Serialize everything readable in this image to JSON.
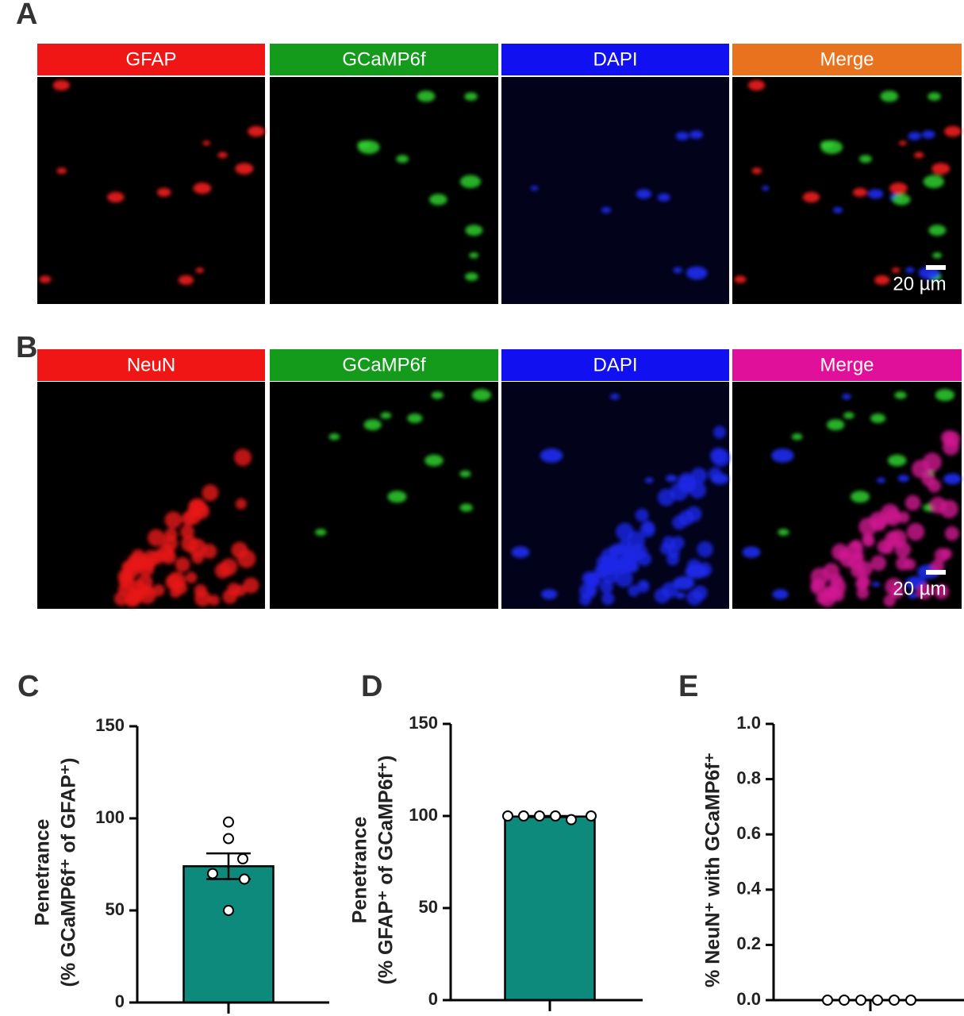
{
  "panel_labels": [
    "A",
    "B",
    "C",
    "D",
    "E"
  ],
  "image_rows": [
    {
      "headers": [
        "GFAP",
        "GCaMP6f",
        "DAPI",
        "Merge"
      ],
      "header_colors": [
        "#f01616",
        "#159b1c",
        "#1010f0",
        "#e8721e"
      ],
      "scale_bar": "20 µm"
    },
    {
      "headers": [
        "NeuN",
        "GCaMP6f",
        "DAPI",
        "Merge"
      ],
      "header_colors": [
        "#f01616",
        "#159b1c",
        "#1010f0",
        "#e0109a"
      ],
      "scale_bar": "20 µm"
    }
  ],
  "chart_data": [
    {
      "type": "bar",
      "ylabel": [
        "Penetrance",
        "(% GCaMP6f⁺ of GFAP⁺)"
      ],
      "values": [
        74
      ],
      "errors": [
        7
      ],
      "points": [
        98,
        89,
        78,
        70,
        67,
        50
      ],
      "color": "#0e8a7c",
      "ylim": [
        0,
        150
      ],
      "yticks": [
        0,
        50,
        100,
        150
      ]
    },
    {
      "type": "bar",
      "ylabel": [
        "Penetrance",
        "(% GFAP⁺ of GCaMP6f⁺)"
      ],
      "values": [
        99.7
      ],
      "errors": [
        0.3
      ],
      "points": [
        100,
        100,
        100,
        100,
        98,
        100
      ],
      "color": "#0e8a7c",
      "ylim": [
        0,
        150
      ],
      "yticks": [
        0,
        50,
        100,
        150
      ]
    },
    {
      "type": "bar",
      "ylabel": [
        "% NeuN⁺ with GCaMP6f⁺"
      ],
      "values": [
        0
      ],
      "errors": [
        0
      ],
      "points": [
        0,
        0,
        0,
        0,
        0,
        0
      ],
      "color": "#0e8a7c",
      "ylim": [
        0,
        1
      ],
      "yticks": [
        {
          "value": 0,
          "label": "0.0"
        },
        {
          "value": 0.2,
          "label": "0.2"
        },
        {
          "value": 0.4,
          "label": "0.4"
        },
        {
          "value": 0.6,
          "label": "0.6"
        },
        {
          "value": 0.8,
          "label": "0.8"
        },
        {
          "value": 1,
          "label": "1.0"
        }
      ]
    }
  ]
}
